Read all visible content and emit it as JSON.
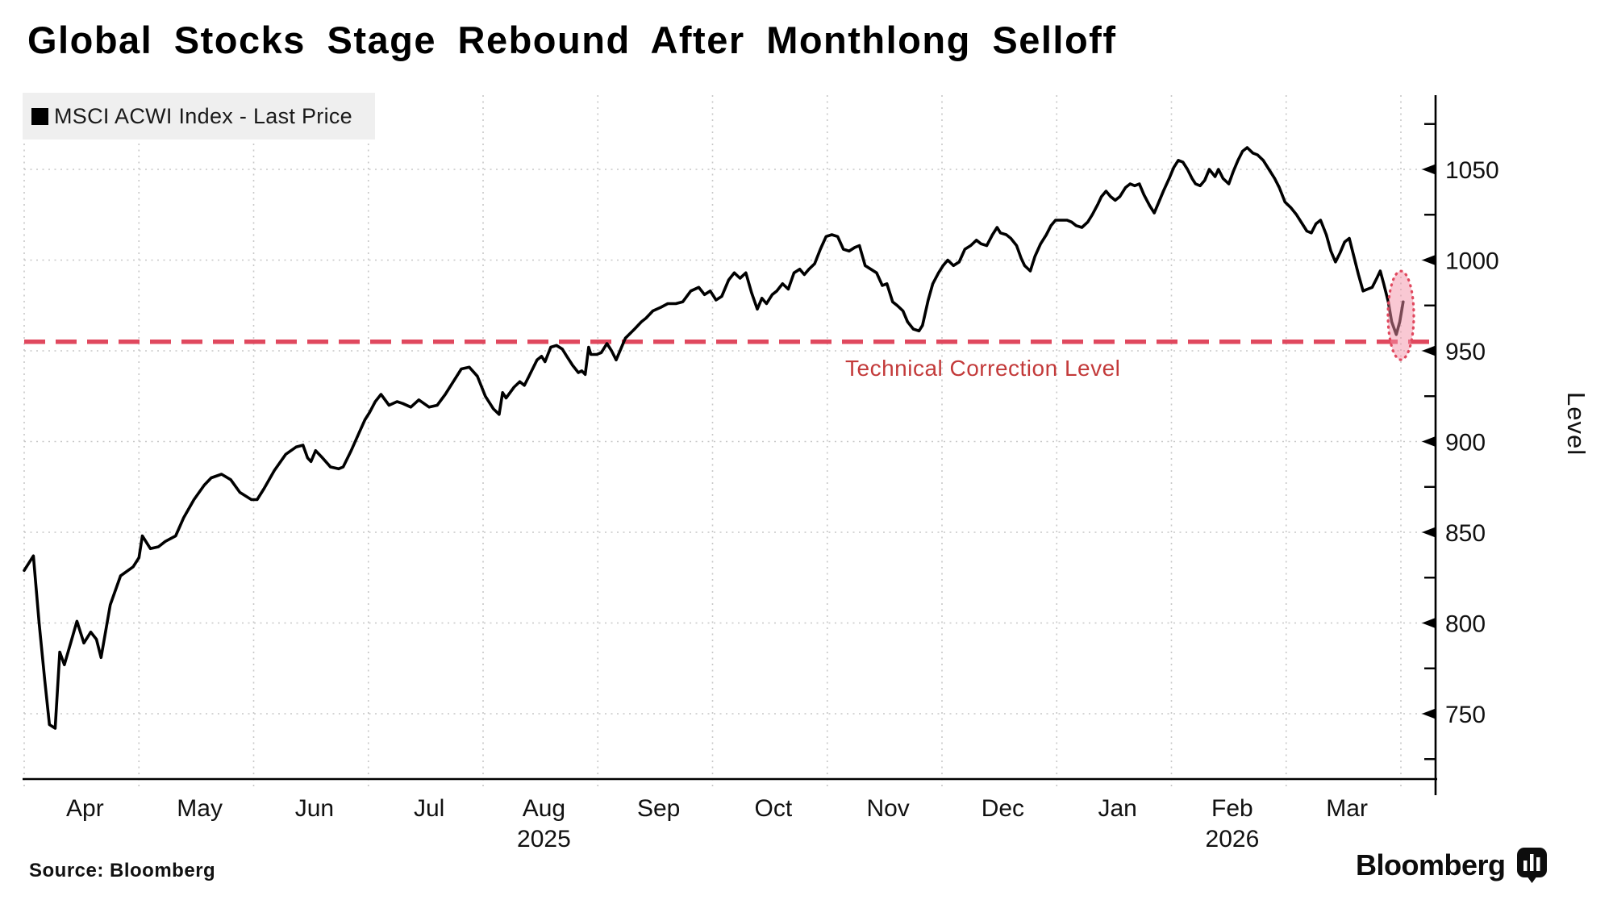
{
  "title": "Global Stocks Stage Rebound After Monthlong Selloff",
  "legend": {
    "label": "MSCI ACWI Index - Last Price"
  },
  "annotations": {
    "threshold_label": "Technical Correction Level",
    "threshold_value": 955,
    "highlight_ellipse": {
      "x_month": 12.0,
      "value_center": 969.5,
      "note": "rebound highlight"
    }
  },
  "source_label": "Source: Bloomberg",
  "brand": {
    "wordmark": "Bloomberg"
  },
  "colors": {
    "line": "#000000",
    "threshold": "#e0485e",
    "threshold_text": "#c33a3a",
    "highlight_fill": "#f491a8",
    "highlight_stroke": "#e0485e",
    "legend_bg": "#efefef",
    "grid": "#c7c7c7",
    "axis": "#000000"
  },
  "chart_data": {
    "type": "line",
    "title": "Global Stocks Stage Rebound After Monthlong Selloff",
    "xlabel": "",
    "ylabel": "Level",
    "legend_position": "top-left",
    "grid": "dotted",
    "x_axis": {
      "months": [
        "Apr",
        "May",
        "Jun",
        "Jul",
        "Aug",
        "Sep",
        "Oct",
        "Nov",
        "Dec",
        "Jan",
        "Feb",
        "Mar"
      ],
      "year_breaks": [
        {
          "month_index": 4,
          "label": "2025"
        },
        {
          "month_index": 10,
          "label": "2026"
        }
      ]
    },
    "y_axis": {
      "major_ticks": [
        750,
        800,
        850,
        900,
        950,
        1000,
        1050
      ],
      "minor_ticks": [
        725,
        775,
        825,
        875,
        925,
        975,
        1025,
        1075
      ],
      "range": [
        710,
        1091
      ],
      "side": "right"
    },
    "threshold_line": {
      "value": 955,
      "label": "Technical Correction Level",
      "style": "dashed"
    },
    "series": [
      {
        "name": "MSCI ACWI Index - Last Price",
        "color": "#000000",
        "points": [
          [
            0.0,
            829
          ],
          [
            0.08,
            837
          ],
          [
            0.13,
            800
          ],
          [
            0.18,
            768
          ],
          [
            0.22,
            744
          ],
          [
            0.27,
            742
          ],
          [
            0.31,
            784
          ],
          [
            0.35,
            777
          ],
          [
            0.41,
            790
          ],
          [
            0.46,
            801
          ],
          [
            0.52,
            789
          ],
          [
            0.58,
            795
          ],
          [
            0.63,
            791
          ],
          [
            0.67,
            781
          ],
          [
            0.75,
            810
          ],
          [
            0.84,
            826
          ],
          [
            0.95,
            831
          ],
          [
            1.0,
            836
          ],
          [
            1.03,
            848
          ],
          [
            1.1,
            841
          ],
          [
            1.17,
            842
          ],
          [
            1.23,
            845
          ],
          [
            1.32,
            848
          ],
          [
            1.39,
            858
          ],
          [
            1.48,
            868
          ],
          [
            1.57,
            876
          ],
          [
            1.63,
            880
          ],
          [
            1.72,
            882
          ],
          [
            1.8,
            879
          ],
          [
            1.88,
            872
          ],
          [
            1.98,
            868
          ],
          [
            2.03,
            868
          ],
          [
            2.09,
            874
          ],
          [
            2.18,
            884
          ],
          [
            2.28,
            893
          ],
          [
            2.37,
            897
          ],
          [
            2.43,
            898
          ],
          [
            2.47,
            891
          ],
          [
            2.5,
            889
          ],
          [
            2.54,
            895
          ],
          [
            2.6,
            891
          ],
          [
            2.67,
            886
          ],
          [
            2.74,
            885
          ],
          [
            2.78,
            886
          ],
          [
            2.85,
            895
          ],
          [
            2.92,
            905
          ],
          [
            2.97,
            912
          ],
          [
            3.01,
            916
          ],
          [
            3.06,
            922
          ],
          [
            3.11,
            926
          ],
          [
            3.18,
            920
          ],
          [
            3.25,
            922
          ],
          [
            3.3,
            921
          ],
          [
            3.37,
            919
          ],
          [
            3.44,
            923
          ],
          [
            3.53,
            919
          ],
          [
            3.6,
            920
          ],
          [
            3.67,
            926
          ],
          [
            3.74,
            933
          ],
          [
            3.81,
            940
          ],
          [
            3.88,
            941
          ],
          [
            3.95,
            936
          ],
          [
            4.02,
            925
          ],
          [
            4.09,
            918
          ],
          [
            4.14,
            915
          ],
          [
            4.17,
            927
          ],
          [
            4.2,
            924
          ],
          [
            4.27,
            930
          ],
          [
            4.32,
            933
          ],
          [
            4.36,
            931
          ],
          [
            4.4,
            936
          ],
          [
            4.47,
            945
          ],
          [
            4.51,
            947
          ],
          [
            4.54,
            944
          ],
          [
            4.59,
            952
          ],
          [
            4.64,
            953
          ],
          [
            4.69,
            951
          ],
          [
            4.73,
            947
          ],
          [
            4.78,
            942
          ],
          [
            4.83,
            938
          ],
          [
            4.86,
            939
          ],
          [
            4.89,
            937
          ],
          [
            4.92,
            952
          ],
          [
            4.94,
            948
          ],
          [
            4.99,
            948
          ],
          [
            5.03,
            949
          ],
          [
            5.08,
            954
          ],
          [
            5.12,
            950
          ],
          [
            5.16,
            945
          ],
          [
            5.2,
            951
          ],
          [
            5.24,
            957
          ],
          [
            5.32,
            962
          ],
          [
            5.38,
            966
          ],
          [
            5.42,
            968
          ],
          [
            5.48,
            972
          ],
          [
            5.55,
            974
          ],
          [
            5.61,
            976
          ],
          [
            5.68,
            976
          ],
          [
            5.74,
            977
          ],
          [
            5.81,
            983
          ],
          [
            5.88,
            985
          ],
          [
            5.93,
            981
          ],
          [
            5.98,
            983
          ],
          [
            6.03,
            978
          ],
          [
            6.08,
            980
          ],
          [
            6.14,
            989
          ],
          [
            6.19,
            993
          ],
          [
            6.24,
            990
          ],
          [
            6.29,
            993
          ],
          [
            6.34,
            982
          ],
          [
            6.39,
            973
          ],
          [
            6.43,
            979
          ],
          [
            6.47,
            976
          ],
          [
            6.52,
            981
          ],
          [
            6.56,
            983
          ],
          [
            6.61,
            987
          ],
          [
            6.66,
            984
          ],
          [
            6.71,
            993
          ],
          [
            6.76,
            995
          ],
          [
            6.8,
            992
          ],
          [
            6.84,
            995
          ],
          [
            6.89,
            998
          ],
          [
            6.94,
            1006
          ],
          [
            6.99,
            1013
          ],
          [
            7.04,
            1014
          ],
          [
            7.09,
            1013
          ],
          [
            7.14,
            1006
          ],
          [
            7.19,
            1005
          ],
          [
            7.24,
            1007
          ],
          [
            7.28,
            1008
          ],
          [
            7.33,
            997
          ],
          [
            7.38,
            995
          ],
          [
            7.43,
            993
          ],
          [
            7.48,
            986
          ],
          [
            7.52,
            987
          ],
          [
            7.57,
            977
          ],
          [
            7.61,
            975
          ],
          [
            7.66,
            972
          ],
          [
            7.7,
            966
          ],
          [
            7.75,
            962
          ],
          [
            7.8,
            961
          ],
          [
            7.83,
            964
          ],
          [
            7.88,
            978
          ],
          [
            7.92,
            987
          ],
          [
            7.97,
            993
          ],
          [
            8.01,
            997
          ],
          [
            8.05,
            1000
          ],
          [
            8.1,
            997
          ],
          [
            8.15,
            999
          ],
          [
            8.2,
            1006
          ],
          [
            8.25,
            1008
          ],
          [
            8.3,
            1011
          ],
          [
            8.34,
            1009
          ],
          [
            8.39,
            1008
          ],
          [
            8.44,
            1014
          ],
          [
            8.48,
            1018
          ],
          [
            8.51,
            1015
          ],
          [
            8.56,
            1014
          ],
          [
            8.6,
            1012
          ],
          [
            8.65,
            1008
          ],
          [
            8.69,
            1001
          ],
          [
            8.72,
            997
          ],
          [
            8.77,
            994
          ],
          [
            8.81,
            1002
          ],
          [
            8.86,
            1009
          ],
          [
            8.91,
            1014
          ],
          [
            8.95,
            1019
          ],
          [
            8.99,
            1022
          ],
          [
            9.04,
            1022
          ],
          [
            9.09,
            1022
          ],
          [
            9.13,
            1021
          ],
          [
            9.17,
            1019
          ],
          [
            9.22,
            1018
          ],
          [
            9.27,
            1021
          ],
          [
            9.31,
            1025
          ],
          [
            9.36,
            1031
          ],
          [
            9.39,
            1035
          ],
          [
            9.43,
            1038
          ],
          [
            9.47,
            1035
          ],
          [
            9.51,
            1033
          ],
          [
            9.55,
            1035
          ],
          [
            9.6,
            1040
          ],
          [
            9.64,
            1042
          ],
          [
            9.68,
            1041
          ],
          [
            9.72,
            1042
          ],
          [
            9.76,
            1036
          ],
          [
            9.81,
            1030
          ],
          [
            9.85,
            1026
          ],
          [
            9.89,
            1032
          ],
          [
            9.93,
            1038
          ],
          [
            9.98,
            1045
          ],
          [
            10.02,
            1051
          ],
          [
            10.06,
            1055
          ],
          [
            10.1,
            1054
          ],
          [
            10.14,
            1050
          ],
          [
            10.18,
            1045
          ],
          [
            10.21,
            1042
          ],
          [
            10.25,
            1041
          ],
          [
            10.29,
            1044
          ],
          [
            10.33,
            1050
          ],
          [
            10.38,
            1046
          ],
          [
            10.41,
            1050
          ],
          [
            10.45,
            1045
          ],
          [
            10.5,
            1042
          ],
          [
            10.54,
            1049
          ],
          [
            10.58,
            1055
          ],
          [
            10.62,
            1060
          ],
          [
            10.66,
            1062
          ],
          [
            10.71,
            1059
          ],
          [
            10.75,
            1058
          ],
          [
            10.8,
            1055
          ],
          [
            10.85,
            1050
          ],
          [
            10.9,
            1045
          ],
          [
            10.94,
            1040
          ],
          [
            10.99,
            1032
          ],
          [
            11.04,
            1029
          ],
          [
            11.09,
            1025
          ],
          [
            11.14,
            1020
          ],
          [
            11.18,
            1016
          ],
          [
            11.22,
            1015
          ],
          [
            11.26,
            1020
          ],
          [
            11.3,
            1022
          ],
          [
            11.35,
            1014
          ],
          [
            11.39,
            1005
          ],
          [
            11.43,
            999
          ],
          [
            11.47,
            1004
          ],
          [
            11.51,
            1010
          ],
          [
            11.55,
            1012
          ],
          [
            11.59,
            1002
          ],
          [
            11.63,
            992
          ],
          [
            11.67,
            983
          ],
          [
            11.71,
            984
          ],
          [
            11.75,
            985
          ],
          [
            11.79,
            990
          ],
          [
            11.82,
            994
          ],
          [
            11.85,
            987
          ],
          [
            11.89,
            977
          ],
          [
            11.92,
            966
          ],
          [
            11.96,
            959
          ],
          [
            11.99,
            966
          ],
          [
            12.02,
            977
          ]
        ]
      }
    ]
  }
}
